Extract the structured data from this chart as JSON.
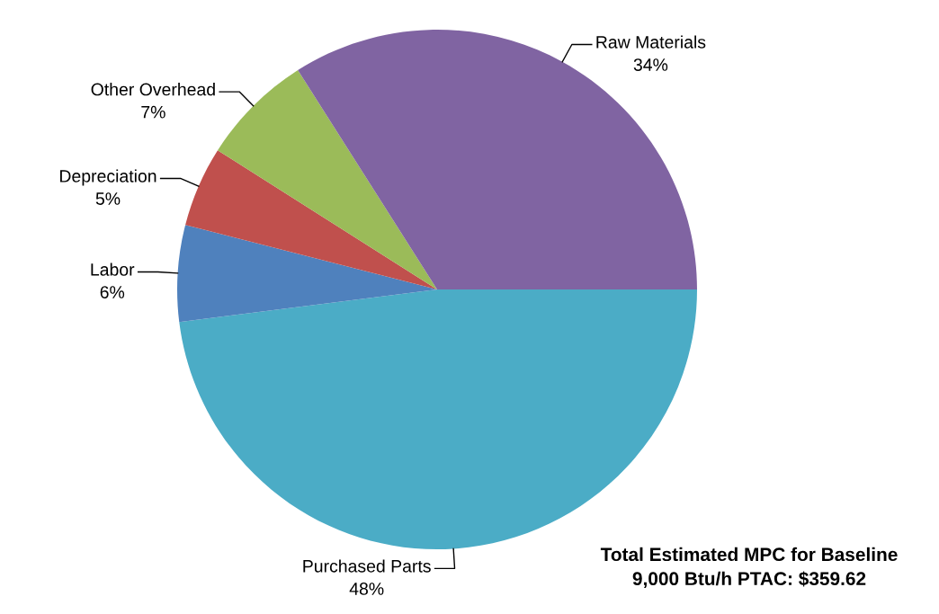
{
  "chart_data": {
    "type": "pie",
    "categories": [
      "Purchased Parts",
      "Labor",
      "Depreciation",
      "Other Overhead",
      "Raw Materials"
    ],
    "values": [
      48,
      6,
      5,
      7,
      34
    ],
    "value_labels": [
      "48%",
      "6%",
      "5%",
      "7%",
      "34%"
    ],
    "colors": [
      "#4bacc6",
      "#4f81bd",
      "#c0504d",
      "#9bbb59",
      "#8064a2"
    ],
    "annotations": [
      "Total Estimated MPC for Baseline\n9,000 Btu/h PTAC: $359.62"
    ]
  }
}
